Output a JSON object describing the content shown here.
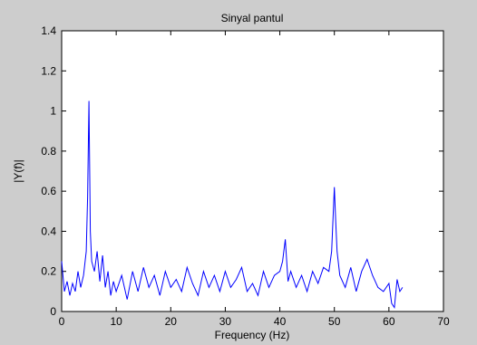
{
  "chart_data": {
    "type": "line",
    "title": "Sinyal pantul",
    "xlabel": "Frequency (Hz)",
    "ylabel": "|Y(f)|",
    "xlim": [
      0,
      70
    ],
    "ylim": [
      0,
      1.4
    ],
    "x_ticks": [
      0,
      10,
      20,
      30,
      40,
      50,
      60,
      70
    ],
    "y_ticks": [
      0,
      0.2,
      0.4,
      0.6,
      0.8,
      1,
      1.2,
      1.4
    ],
    "x_tick_labels": [
      "0",
      "10",
      "20",
      "30",
      "40",
      "50",
      "60",
      "70"
    ],
    "y_tick_labels": [
      "0",
      "0.2",
      "0.4",
      "0.6",
      "0.8",
      "1",
      "1.2",
      "1.4"
    ],
    "grid": false,
    "line_color": "#0000ff",
    "series": [
      {
        "x": [
          0,
          0.5,
          1,
          1.5,
          2,
          2.5,
          3,
          3.5,
          4,
          4.5,
          4.75,
          5,
          5.25,
          5.5,
          6,
          6.5,
          7,
          7.5,
          8,
          8.5,
          9,
          9.5,
          10,
          11,
          12,
          13,
          14,
          15,
          16,
          17,
          18,
          19,
          20,
          21,
          22,
          23,
          24,
          25,
          26,
          27,
          28,
          29,
          30,
          31,
          32,
          33,
          34,
          35,
          36,
          37,
          38,
          39,
          40,
          40.5,
          41,
          41.5,
          42,
          43,
          44,
          45,
          46,
          47,
          48,
          49,
          49.5,
          50,
          50.25,
          50.5,
          51,
          52,
          53,
          54,
          55,
          56,
          57,
          58,
          59,
          60,
          60.5,
          61,
          61.5,
          62,
          62.5
        ],
        "values": [
          0.25,
          0.1,
          0.15,
          0.08,
          0.14,
          0.1,
          0.2,
          0.12,
          0.18,
          0.3,
          0.57,
          1.05,
          0.4,
          0.25,
          0.2,
          0.3,
          0.15,
          0.28,
          0.12,
          0.2,
          0.08,
          0.15,
          0.1,
          0.18,
          0.06,
          0.2,
          0.1,
          0.22,
          0.12,
          0.18,
          0.08,
          0.2,
          0.12,
          0.16,
          0.1,
          0.22,
          0.14,
          0.08,
          0.2,
          0.12,
          0.18,
          0.1,
          0.2,
          0.12,
          0.16,
          0.22,
          0.1,
          0.14,
          0.08,
          0.2,
          0.12,
          0.18,
          0.2,
          0.25,
          0.36,
          0.15,
          0.2,
          0.12,
          0.18,
          0.1,
          0.2,
          0.14,
          0.22,
          0.2,
          0.3,
          0.62,
          0.45,
          0.3,
          0.18,
          0.12,
          0.22,
          0.1,
          0.2,
          0.26,
          0.18,
          0.12,
          0.1,
          0.14,
          0.04,
          0.02,
          0.16,
          0.1,
          0.12
        ]
      }
    ]
  }
}
